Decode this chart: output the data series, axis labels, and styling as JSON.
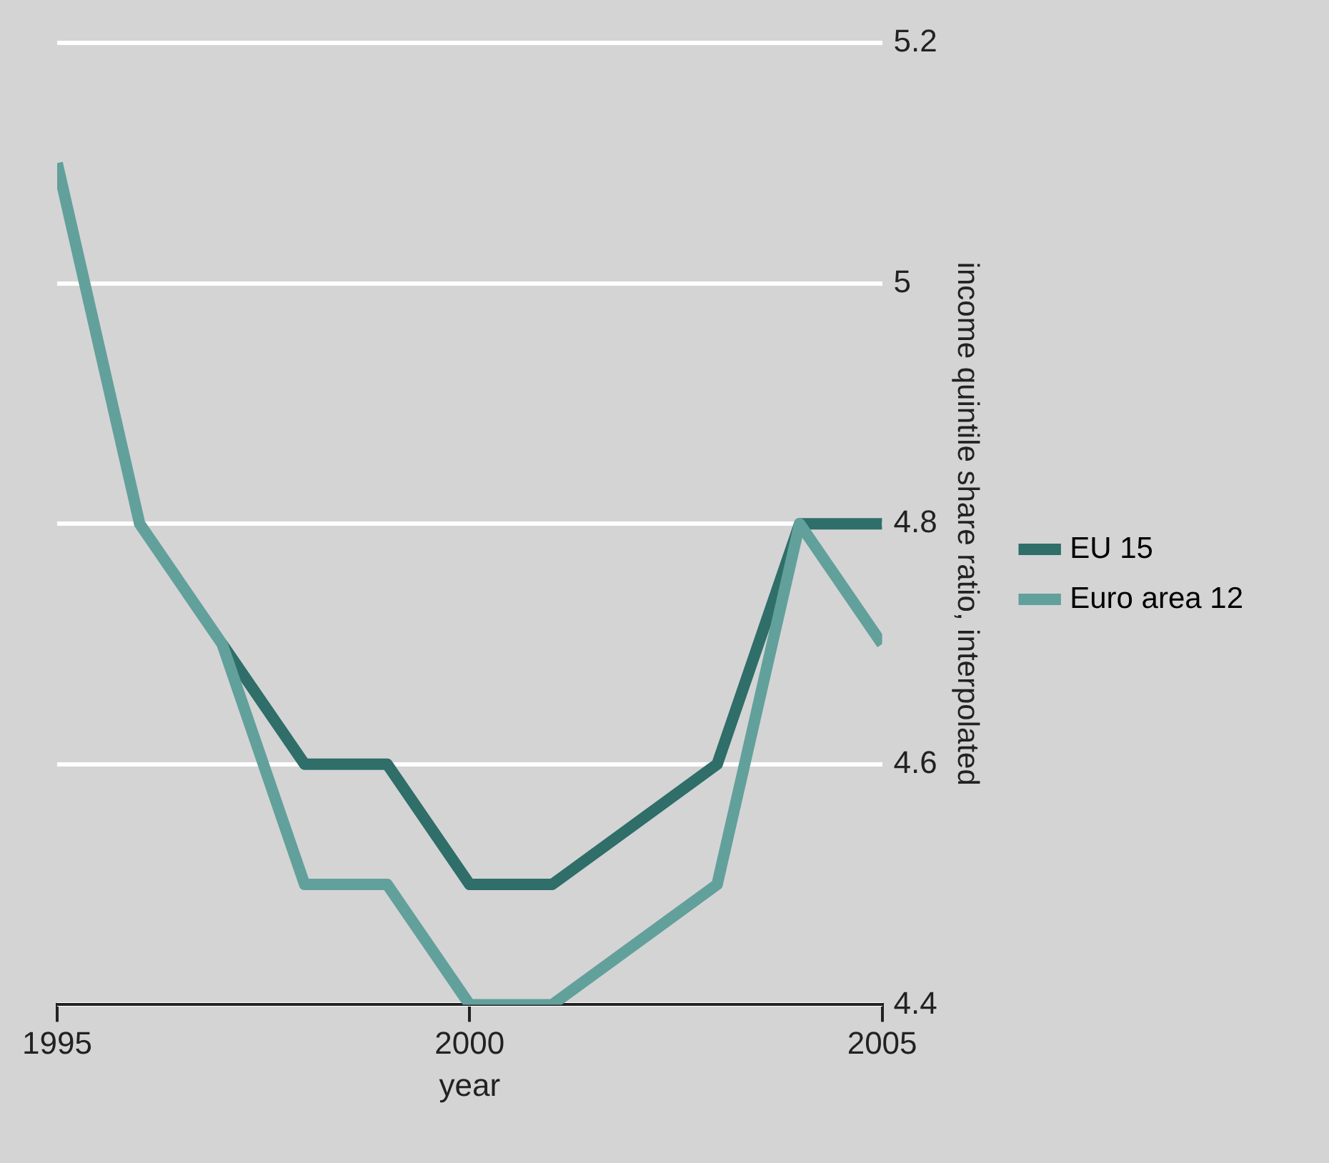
{
  "chart_data": {
    "type": "line",
    "xlabel": "year",
    "ylabel": "income quintile share ratio, interpolated",
    "x": [
      1995,
      1996,
      1997,
      1998,
      1999,
      2000,
      2001,
      2002,
      2003,
      2004,
      2005
    ],
    "series": [
      {
        "name": "EU 15",
        "color": "#2f6e69",
        "values": [
          null,
          null,
          4.7,
          4.6,
          4.6,
          4.5,
          4.5,
          4.55,
          4.6,
          4.8,
          4.8
        ]
      },
      {
        "name": "Euro area 12",
        "color": "#62a09b",
        "values": [
          5.1,
          4.8,
          4.7,
          4.5,
          4.5,
          4.4,
          4.4,
          4.45,
          4.5,
          4.8,
          4.7
        ]
      }
    ],
    "xlim": [
      1995,
      2005
    ],
    "xticks": [
      1995,
      2000,
      2005
    ],
    "ylim": [
      4.4,
      5.2
    ],
    "yticks": [
      4.4,
      4.6,
      4.8,
      5,
      5.2
    ],
    "grid": "y",
    "legend": "right",
    "marker": "none",
    "line_style": "solid"
  }
}
